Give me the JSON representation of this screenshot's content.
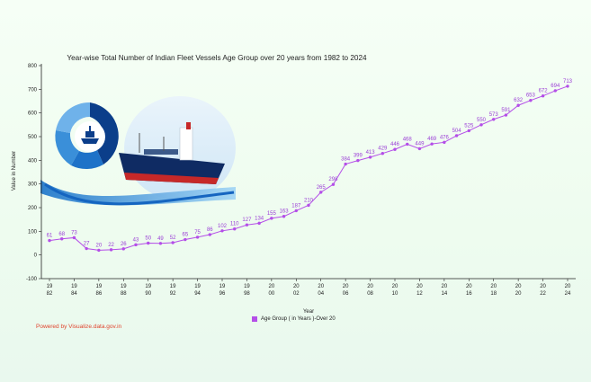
{
  "chart_data": {
    "type": "line",
    "title": "Year-wise Total Number of Indian Fleet Vessels Age Group over 20 years from 1982 to 2024",
    "xlabel": "Year",
    "ylabel": "Value in Number",
    "ylim": [
      -100,
      800
    ],
    "yticks": [
      -100,
      0,
      100,
      200,
      300,
      400,
      500,
      600,
      700,
      800
    ],
    "x": [
      1982,
      1983,
      1984,
      1985,
      1986,
      1987,
      1988,
      1989,
      1990,
      1991,
      1992,
      1993,
      1994,
      1995,
      1996,
      1997,
      1998,
      1999,
      2000,
      2001,
      2002,
      2003,
      2004,
      2005,
      2006,
      2007,
      2008,
      2009,
      2010,
      2011,
      2012,
      2013,
      2014,
      2015,
      2016,
      2017,
      2018,
      2019,
      2020,
      2021,
      2022,
      2023,
      2024
    ],
    "xtick_labels": [
      [
        "19",
        "82"
      ],
      [
        "19",
        "84"
      ],
      [
        "19",
        "86"
      ],
      [
        "19",
        "88"
      ],
      [
        "19",
        "90"
      ],
      [
        "19",
        "92"
      ],
      [
        "19",
        "94"
      ],
      [
        "19",
        "96"
      ],
      [
        "19",
        "98"
      ],
      [
        "20",
        "00"
      ],
      [
        "20",
        "02"
      ],
      [
        "20",
        "04"
      ],
      [
        "20",
        "06"
      ],
      [
        "20",
        "08"
      ],
      [
        "20",
        "10"
      ],
      [
        "20",
        "12"
      ],
      [
        "20",
        "14"
      ],
      [
        "20",
        "16"
      ],
      [
        "20",
        "18"
      ],
      [
        "20",
        "20"
      ],
      [
        "20",
        "22"
      ],
      [
        "20",
        "24"
      ]
    ],
    "series": [
      {
        "name": "Age Group ( in Years )-Over 20",
        "color": "#b44ee8",
        "values": [
          61,
          68,
          73,
          27,
          20,
          22,
          26,
          43,
          50,
          49,
          52,
          65,
          75,
          86,
          102,
          110,
          127,
          134,
          155,
          163,
          187,
          210,
          265,
          298,
          384,
          399,
          413,
          429,
          446,
          468,
          449,
          469,
          476,
          504,
          525,
          550,
          573,
          591,
          632,
          653,
          672,
          694,
          713
        ]
      }
    ],
    "legend": "bottom-center",
    "grid": false
  },
  "footer": {
    "credit": "Powered by Visualize.data.gov.in"
  }
}
